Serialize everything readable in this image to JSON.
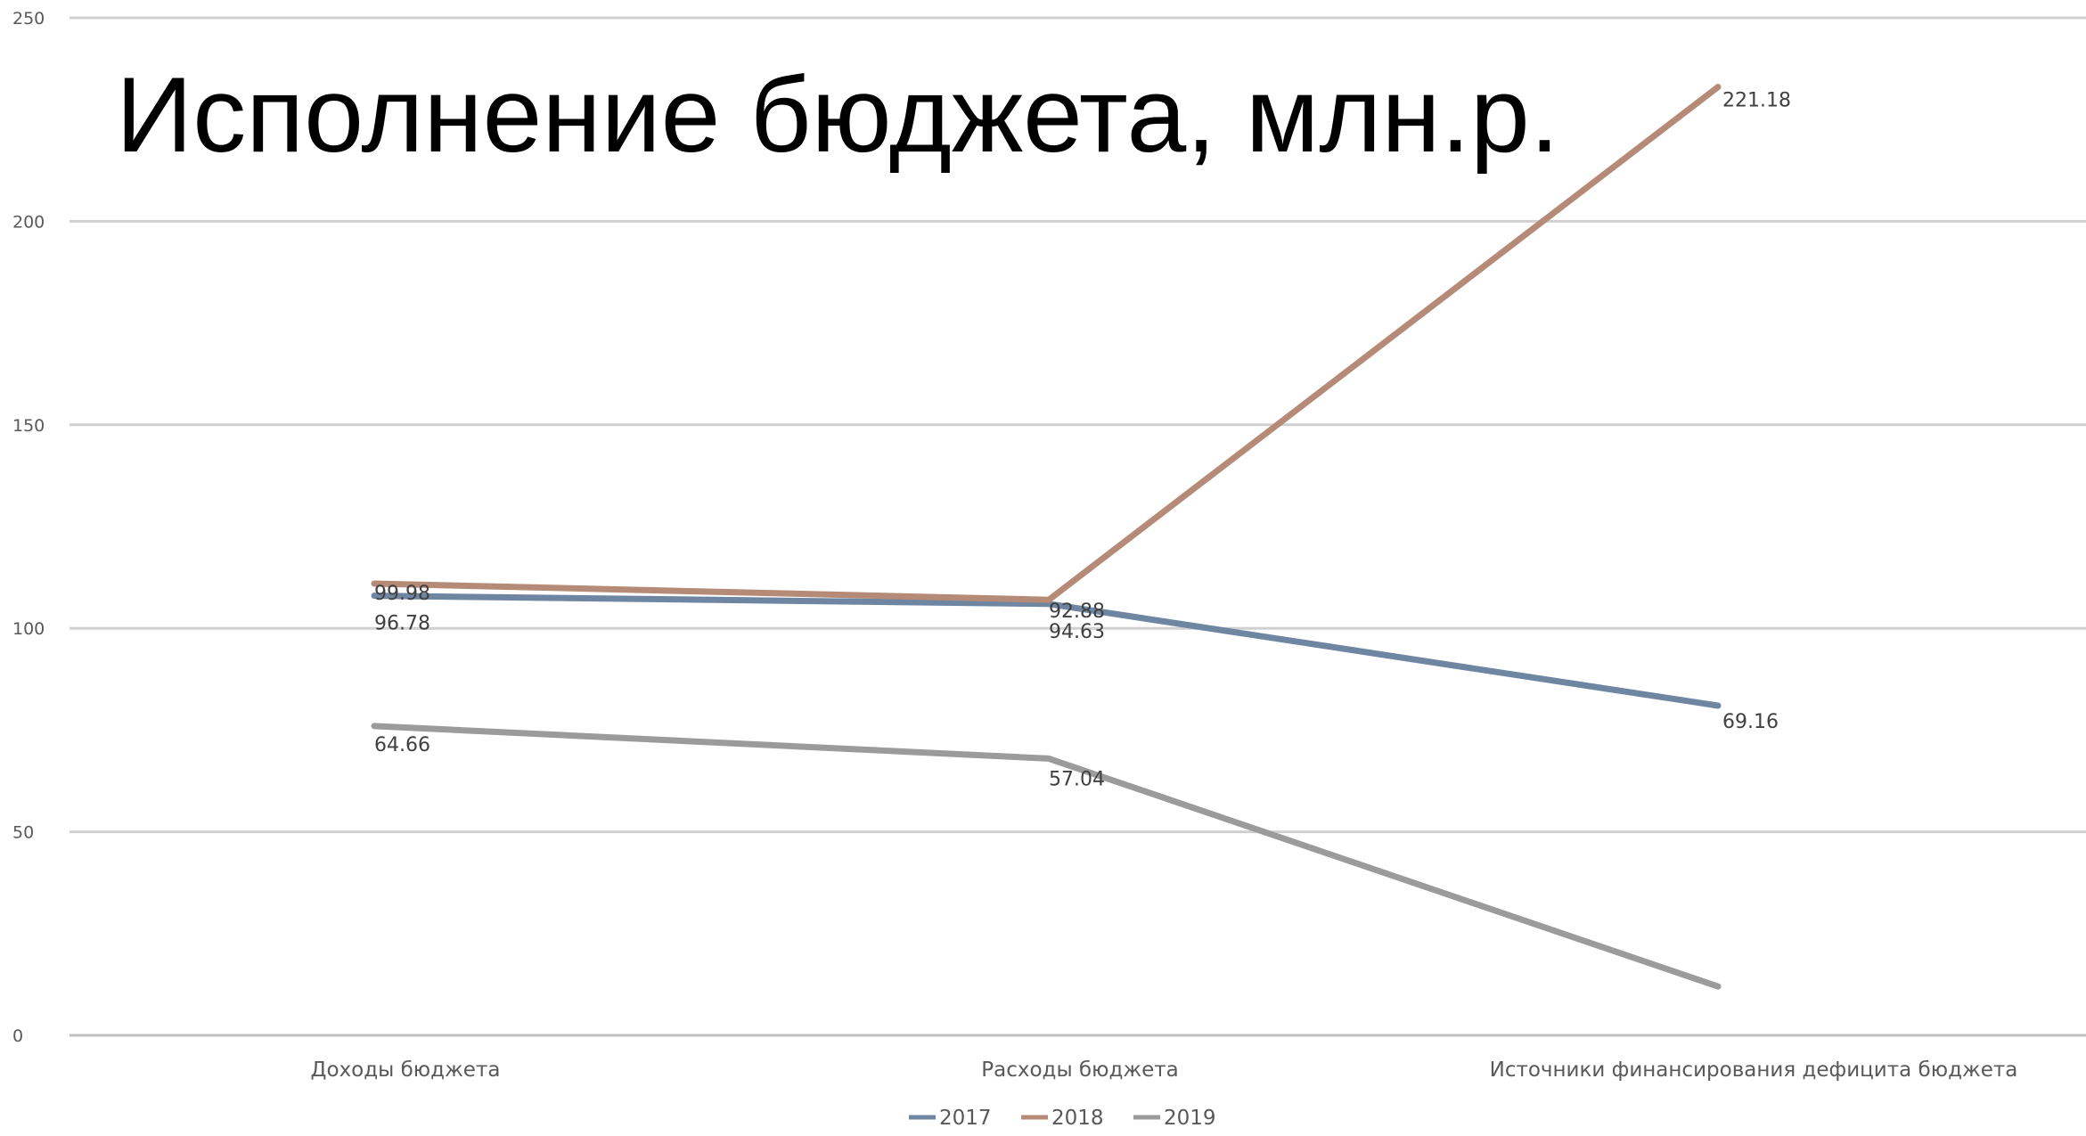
{
  "chart_data": {
    "type": "line",
    "title": "Исполнение бюджета, млн.р.",
    "xlabel": "",
    "ylabel": "",
    "ylim": [
      0,
      250
    ],
    "yticks": [
      0,
      50,
      100,
      150,
      200,
      250
    ],
    "grid": true,
    "legend": "bottom",
    "categories": [
      "Доходы бюджета",
      "Расходы бюджета",
      "Источники финансирования дефицита бюджета"
    ],
    "series": [
      {
        "name": "2017",
        "color": "#6f86a3",
        "values": [
          108,
          106,
          81
        ],
        "labels": [
          "96.78",
          "94.63",
          "69.16"
        ]
      },
      {
        "name": "2018",
        "color": "#b58a76",
        "values": [
          111,
          107,
          233
        ],
        "labels": [
          "99.98",
          "92.88",
          "221.18"
        ]
      },
      {
        "name": "2019",
        "color": "#9b9b9b",
        "values": [
          76,
          68,
          12
        ],
        "labels": [
          "64.66",
          "57.04",
          ""
        ]
      }
    ]
  }
}
